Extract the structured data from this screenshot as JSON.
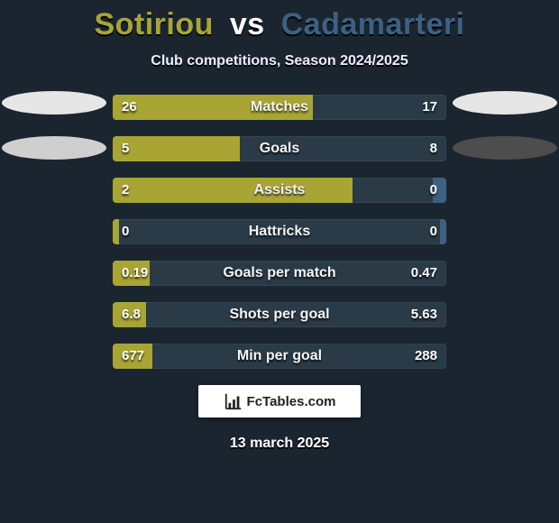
{
  "title": {
    "player1": "Sotiriou",
    "vs": "vs",
    "player2": "Cadamarteri",
    "color1": "#a8a535",
    "color2": "#3e6082"
  },
  "subtitle": "Club competitions, Season 2024/2025",
  "ellipses": {
    "left": [
      {
        "color": "#e6e6e6"
      },
      {
        "color": "#cfcfcf"
      }
    ],
    "right": [
      {
        "color": "#e6e6e6"
      },
      {
        "color": "#4d4d4d"
      }
    ]
  },
  "bars": {
    "track_color": "#2a3a47",
    "left_fill_color": "#a8a535",
    "right_fill_color": "#3e6082",
    "rows": [
      {
        "label": "Matches",
        "left_val": "26",
        "right_val": "17",
        "left_pct": 60,
        "right_pct": 0
      },
      {
        "label": "Goals",
        "left_val": "5",
        "right_val": "8",
        "left_pct": 38,
        "right_pct": 0
      },
      {
        "label": "Assists",
        "left_val": "2",
        "right_val": "0",
        "left_pct": 72,
        "right_pct": 4
      },
      {
        "label": "Hattricks",
        "left_val": "0",
        "right_val": "0",
        "left_pct": 2,
        "right_pct": 2
      },
      {
        "label": "Goals per match",
        "left_val": "0.19",
        "right_val": "0.47",
        "left_pct": 11,
        "right_pct": 0
      },
      {
        "label": "Shots per goal",
        "left_val": "6.8",
        "right_val": "5.63",
        "left_pct": 10,
        "right_pct": 0
      },
      {
        "label": "Min per goal",
        "left_val": "677",
        "right_val": "288",
        "left_pct": 12,
        "right_pct": 0
      }
    ]
  },
  "logo": {
    "text": "FcTables.com"
  },
  "date": "13 march 2025"
}
